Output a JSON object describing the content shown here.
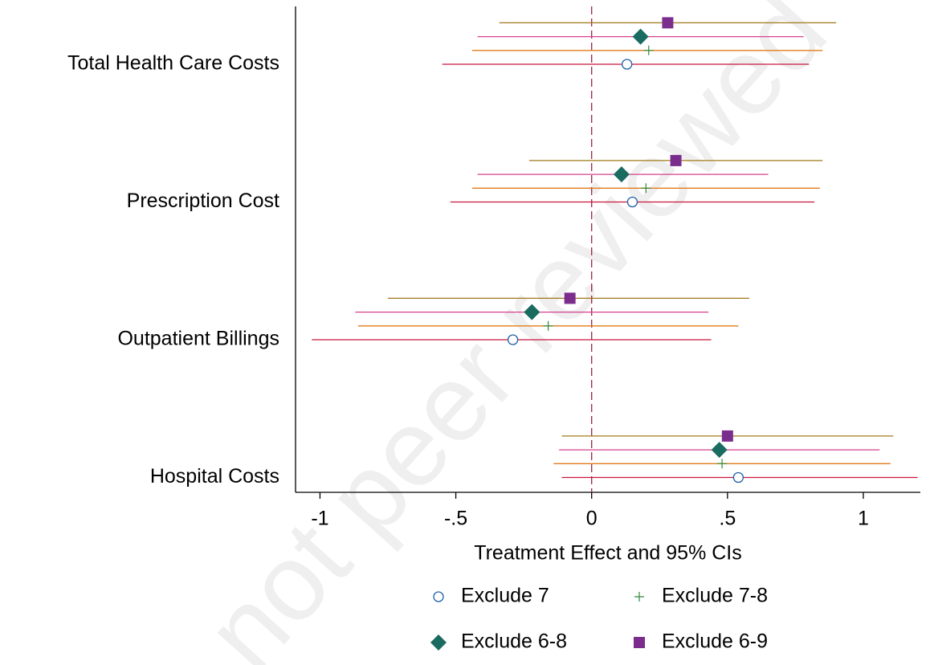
{
  "chart_data": {
    "type": "coefplot",
    "watermark": "not peer reviewed",
    "x_label": "Treatment Effect and 95% CIs",
    "categories": [
      "Total Health Care Costs",
      "Prescription Cost",
      "Outpatient Billings",
      "Hospital Costs"
    ],
    "xlim": [
      -1.09,
      1.21
    ],
    "xticks": [
      -1,
      {
        "value": -0.5,
        "label": "-.5"
      },
      0,
      {
        "value": 0.5,
        "label": ".5"
      },
      1
    ],
    "reference_line": 0,
    "reference_color": "#a0203a",
    "legend_position": "bottom",
    "series": [
      {
        "name": "Exclude 7",
        "marker": "circle",
        "color": "#1f5fa8",
        "ci_color": "#c8163e",
        "values": [
          0.13,
          0.15,
          -0.29,
          0.54
        ],
        "lower": [
          -0.55,
          -0.52,
          -1.03,
          -0.11
        ],
        "upper": [
          0.8,
          0.82,
          0.44,
          1.2
        ]
      },
      {
        "name": "Exclude 7-8",
        "marker": "plus",
        "color": "#2e8b3a",
        "ci_color": "#e07b1a",
        "values": [
          0.21,
          0.2,
          -0.16,
          0.48
        ],
        "lower": [
          -0.44,
          -0.44,
          -0.86,
          -0.14
        ],
        "upper": [
          0.85,
          0.84,
          0.54,
          1.1
        ]
      },
      {
        "name": "Exclude 6-8",
        "marker": "diamond",
        "color": "#1a6b60",
        "ci_color": "#d6408f",
        "values": [
          0.18,
          0.11,
          -0.22,
          0.47
        ],
        "lower": [
          -0.42,
          -0.42,
          -0.87,
          -0.12
        ],
        "upper": [
          0.78,
          0.65,
          0.43,
          1.06
        ]
      },
      {
        "name": "Exclude 6-9",
        "marker": "square",
        "color": "#7b2d8e",
        "ci_color": "#a0781a",
        "values": [
          0.28,
          0.31,
          -0.08,
          0.5
        ],
        "lower": [
          -0.34,
          -0.23,
          -0.75,
          -0.11
        ],
        "upper": [
          0.9,
          0.85,
          0.58,
          1.11
        ]
      }
    ]
  }
}
